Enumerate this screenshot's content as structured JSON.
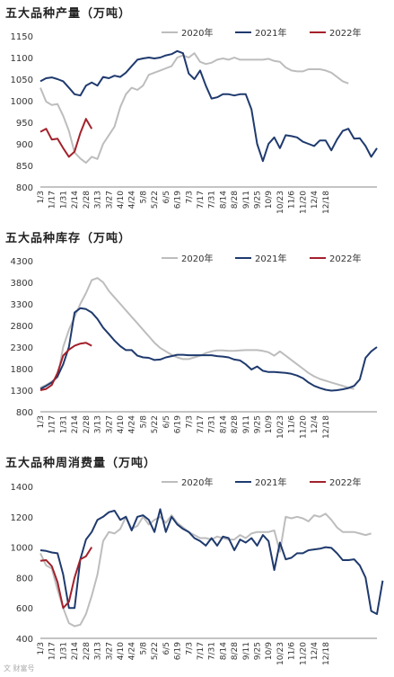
{
  "colors": {
    "y2020": "#bdbdbd",
    "y2021": "#1f3a6e",
    "y2022": "#a3212b"
  },
  "legend_labels": [
    "2020年",
    "2021年",
    "2022年"
  ],
  "x_ticks": [
    "1/3",
    "1/17",
    "1/31",
    "2/14",
    "2/28",
    "3/13",
    "3/27",
    "4/10",
    "4/24",
    "5/8",
    "5/22",
    "6/5",
    "6/19",
    "7/3",
    "7/17",
    "7/31",
    "8/14",
    "8/28",
    "9/11",
    "9/25",
    "10/9",
    "10/23",
    "11/6",
    "11/20",
    "12/4",
    "12/18"
  ],
  "watermark": "文 财富号",
  "chart_data": [
    {
      "type": "line",
      "title": "五大品种产量（万吨）",
      "ylim": [
        800,
        1150
      ],
      "yticks": [
        800,
        850,
        900,
        950,
        1000,
        1050,
        1100,
        1150
      ],
      "series": [
        {
          "name": "2020年",
          "values": [
            1030,
            998,
            990,
            992,
            965,
            930,
            880,
            866,
            856,
            870,
            865,
            900,
            920,
            940,
            985,
            1015,
            1030,
            1025,
            1035,
            1060,
            1065,
            1070,
            1075,
            1080,
            1100,
            1105,
            1100,
            1110,
            1090,
            1085,
            1088,
            1095,
            1098,
            1095,
            1100,
            1095,
            1095,
            1095,
            1095,
            1095,
            1097,
            1092,
            1090,
            1077,
            1070,
            1068,
            1068,
            1073,
            1073,
            1073,
            1070,
            1065,
            1055,
            1045,
            1040
          ]
        },
        {
          "name": "2021年",
          "values": [
            1045,
            1052,
            1054,
            1050,
            1045,
            1030,
            1015,
            1012,
            1035,
            1042,
            1035,
            1055,
            1052,
            1058,
            1055,
            1065,
            1080,
            1095,
            1098,
            1100,
            1098,
            1100,
            1105,
            1108,
            1115,
            1110,
            1063,
            1050,
            1070,
            1035,
            1005,
            1008,
            1015,
            1015,
            1012,
            1015,
            1015,
            980,
            900,
            860,
            900,
            915,
            890,
            920,
            918,
            915,
            905,
            900,
            895,
            908,
            908,
            885,
            910,
            930,
            935,
            912,
            913,
            895,
            870,
            890
          ]
        },
        {
          "name": "2022年",
          "values": [
            928,
            935,
            910,
            912,
            890,
            870,
            882,
            925,
            958,
            935
          ]
        }
      ]
    },
    {
      "type": "line",
      "title": "五大品种库存（万吨）",
      "ylim": [
        800,
        4300
      ],
      "yticks": [
        800,
        1300,
        1800,
        2300,
        2800,
        3300,
        3800,
        4300
      ],
      "series": [
        {
          "name": "2020年",
          "values": [
            1360,
            1420,
            1500,
            1600,
            2300,
            2700,
            3000,
            3300,
            3550,
            3850,
            3900,
            3800,
            3600,
            3450,
            3300,
            3150,
            3000,
            2850,
            2700,
            2550,
            2400,
            2280,
            2200,
            2120,
            2060,
            2020,
            2020,
            2060,
            2100,
            2160,
            2200,
            2220,
            2220,
            2210,
            2210,
            2220,
            2230,
            2230,
            2230,
            2210,
            2180,
            2100,
            2200,
            2100,
            2000,
            1900,
            1800,
            1700,
            1620,
            1560,
            1520,
            1480,
            1440,
            1400,
            1360,
            1330
          ]
        },
        {
          "name": "2021年",
          "values": [
            1330,
            1400,
            1480,
            1620,
            1900,
            2300,
            3100,
            3200,
            3180,
            3100,
            2950,
            2750,
            2600,
            2450,
            2320,
            2230,
            2230,
            2100,
            2060,
            2050,
            2000,
            2010,
            2060,
            2090,
            2120,
            2120,
            2110,
            2110,
            2110,
            2110,
            2110,
            2090,
            2080,
            2060,
            2010,
            1990,
            1900,
            1780,
            1850,
            1750,
            1720,
            1720,
            1710,
            1700,
            1680,
            1640,
            1580,
            1480,
            1400,
            1350,
            1310,
            1290,
            1300,
            1320,
            1350,
            1400,
            1550,
            2050,
            2200,
            2300
          ]
        },
        {
          "name": "2022年",
          "values": [
            1300,
            1330,
            1420,
            1700,
            2100,
            2240,
            2330,
            2380,
            2400,
            2330
          ]
        }
      ]
    },
    {
      "type": "line",
      "title": "五大品种周消费量（万吨）",
      "ylim": [
        400,
        1400
      ],
      "yticks": [
        400,
        600,
        800,
        1000,
        1200,
        1400
      ],
      "series": [
        {
          "name": "2020年",
          "values": [
            960,
            880,
            860,
            720,
            600,
            500,
            480,
            490,
            560,
            680,
            820,
            1040,
            1100,
            1090,
            1120,
            1200,
            1120,
            1140,
            1200,
            1150,
            1180,
            1200,
            1160,
            1210,
            1160,
            1130,
            1100,
            1080,
            1060,
            1060,
            1050,
            1070,
            1060,
            1050,
            1050,
            1080,
            1060,
            1090,
            1100,
            1100,
            1100,
            1110,
            970,
            1200,
            1190,
            1200,
            1190,
            1170,
            1210,
            1200,
            1220,
            1180,
            1130,
            1100,
            1100,
            1100,
            1090,
            1080,
            1090
          ]
        },
        {
          "name": "2021年",
          "values": [
            980,
            975,
            965,
            960,
            820,
            600,
            600,
            920,
            1050,
            1100,
            1180,
            1200,
            1230,
            1240,
            1180,
            1200,
            1110,
            1200,
            1210,
            1180,
            1100,
            1250,
            1100,
            1200,
            1150,
            1120,
            1100,
            1060,
            1040,
            1010,
            1060,
            1010,
            1070,
            1060,
            980,
            1050,
            1030,
            1060,
            1010,
            1080,
            1040,
            850,
            1030,
            920,
            930,
            960,
            960,
            980,
            985,
            990,
            1000,
            995,
            960,
            915,
            915,
            920,
            880,
            800,
            580,
            560,
            780
          ]
        },
        {
          "name": "2022年",
          "values": [
            910,
            915,
            875,
            770,
            600,
            640,
            800,
            920,
            940,
            1000
          ]
        }
      ]
    }
  ]
}
